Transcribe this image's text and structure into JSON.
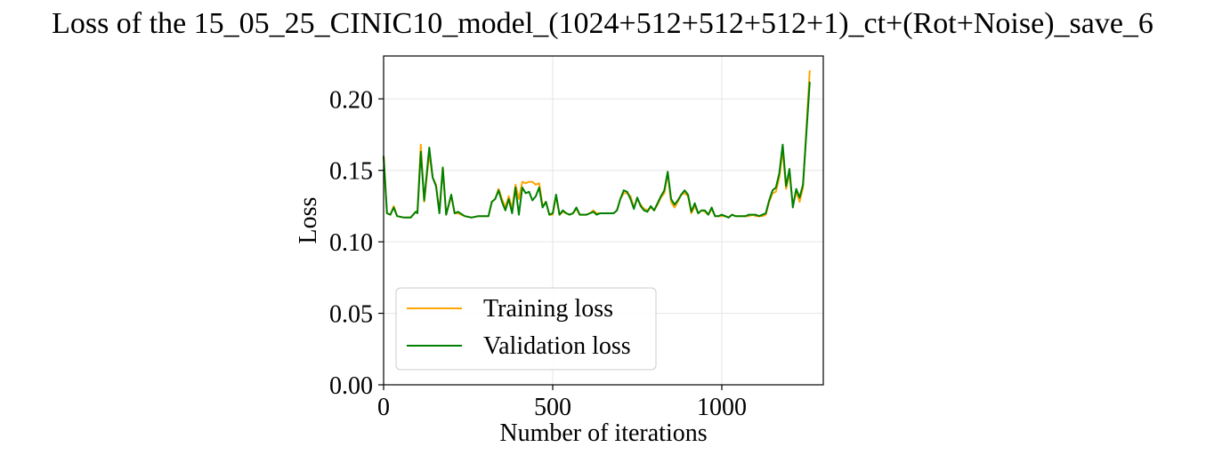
{
  "chart_data": {
    "type": "line",
    "title": "Loss of the 15_05_25_CINIC10_model_(1024+512+512+512+1)_ct+(Rot+Noise)_save_6",
    "xlabel": "Number of iterations",
    "ylabel": "Loss",
    "xlim": [
      0,
      1300
    ],
    "ylim": [
      0,
      0.23
    ],
    "xticks": [
      0,
      500,
      1000
    ],
    "xtick_labels": [
      "0",
      "500",
      "1000"
    ],
    "yticks": [
      0,
      0.05,
      0.1,
      0.15,
      0.2
    ],
    "ytick_labels": [
      "0.00",
      "0.05",
      "0.10",
      "0.15",
      "0.20"
    ],
    "grid": true,
    "legend_position": "lower-left",
    "series": [
      {
        "name": "Training loss",
        "color": "#ffa500",
        "x": [
          0,
          10,
          20,
          30,
          40,
          60,
          80,
          95,
          100,
          110,
          120,
          135,
          145,
          155,
          165,
          175,
          185,
          200,
          210,
          220,
          240,
          260,
          280,
          300,
          310,
          320,
          330,
          340,
          350,
          360,
          370,
          380,
          390,
          400,
          410,
          420,
          430,
          440,
          450,
          460,
          470,
          480,
          490,
          500,
          510,
          520,
          530,
          540,
          550,
          560,
          570,
          580,
          590,
          600,
          610,
          620,
          630,
          640,
          650,
          660,
          670,
          680,
          690,
          700,
          710,
          720,
          730,
          740,
          750,
          760,
          770,
          780,
          790,
          800,
          810,
          820,
          830,
          840,
          850,
          860,
          870,
          880,
          890,
          900,
          910,
          920,
          930,
          940,
          950,
          960,
          970,
          980,
          990,
          1000,
          1010,
          1020,
          1030,
          1040,
          1050,
          1060,
          1070,
          1080,
          1090,
          1100,
          1110,
          1120,
          1130,
          1140,
          1150,
          1160,
          1170,
          1180,
          1190,
          1200,
          1210,
          1220,
          1230,
          1240,
          1260
        ],
        "values": [
          0.16,
          0.12,
          0.119,
          0.125,
          0.118,
          0.117,
          0.117,
          0.121,
          0.121,
          0.168,
          0.128,
          0.162,
          0.145,
          0.14,
          0.121,
          0.152,
          0.119,
          0.132,
          0.12,
          0.12,
          0.118,
          0.117,
          0.118,
          0.118,
          0.118,
          0.128,
          0.13,
          0.137,
          0.13,
          0.124,
          0.132,
          0.123,
          0.14,
          0.13,
          0.142,
          0.141,
          0.142,
          0.142,
          0.14,
          0.141,
          0.125,
          0.128,
          0.119,
          0.119,
          0.132,
          0.119,
          0.121,
          0.12,
          0.119,
          0.12,
          0.123,
          0.119,
          0.119,
          0.119,
          0.12,
          0.122,
          0.12,
          0.12,
          0.12,
          0.12,
          0.12,
          0.12,
          0.122,
          0.13,
          0.134,
          0.134,
          0.132,
          0.124,
          0.13,
          0.126,
          0.123,
          0.122,
          0.124,
          0.122,
          0.126,
          0.131,
          0.134,
          0.148,
          0.128,
          0.124,
          0.128,
          0.133,
          0.134,
          0.132,
          0.12,
          0.125,
          0.12,
          0.122,
          0.121,
          0.119,
          0.123,
          0.118,
          0.118,
          0.118,
          0.118,
          0.117,
          0.119,
          0.118,
          0.118,
          0.118,
          0.118,
          0.118,
          0.119,
          0.118,
          0.118,
          0.118,
          0.119,
          0.128,
          0.134,
          0.135,
          0.145,
          0.164,
          0.137,
          0.148,
          0.126,
          0.135,
          0.128,
          0.138,
          0.22
        ]
      },
      {
        "name": "Validation loss",
        "color": "#008000",
        "x": [
          0,
          10,
          20,
          30,
          40,
          60,
          80,
          95,
          100,
          110,
          120,
          135,
          145,
          155,
          165,
          175,
          185,
          200,
          210,
          220,
          240,
          260,
          280,
          300,
          310,
          320,
          330,
          340,
          350,
          360,
          370,
          380,
          390,
          400,
          410,
          420,
          430,
          440,
          450,
          460,
          470,
          480,
          490,
          500,
          510,
          520,
          530,
          540,
          550,
          560,
          570,
          580,
          590,
          600,
          610,
          620,
          630,
          640,
          650,
          660,
          670,
          680,
          690,
          700,
          710,
          720,
          730,
          740,
          750,
          760,
          770,
          780,
          790,
          800,
          810,
          820,
          830,
          840,
          850,
          860,
          870,
          880,
          890,
          900,
          910,
          920,
          930,
          940,
          950,
          960,
          970,
          980,
          990,
          1000,
          1010,
          1020,
          1030,
          1040,
          1050,
          1060,
          1070,
          1080,
          1090,
          1100,
          1110,
          1120,
          1130,
          1140,
          1150,
          1160,
          1170,
          1180,
          1190,
          1200,
          1210,
          1220,
          1230,
          1240,
          1260
        ],
        "values": [
          0.16,
          0.12,
          0.119,
          0.124,
          0.118,
          0.117,
          0.117,
          0.121,
          0.12,
          0.163,
          0.129,
          0.166,
          0.145,
          0.139,
          0.12,
          0.152,
          0.119,
          0.133,
          0.12,
          0.121,
          0.118,
          0.117,
          0.118,
          0.118,
          0.118,
          0.128,
          0.13,
          0.136,
          0.128,
          0.122,
          0.13,
          0.12,
          0.138,
          0.119,
          0.138,
          0.134,
          0.135,
          0.129,
          0.132,
          0.138,
          0.124,
          0.128,
          0.119,
          0.12,
          0.133,
          0.119,
          0.122,
          0.12,
          0.119,
          0.12,
          0.124,
          0.119,
          0.119,
          0.119,
          0.12,
          0.121,
          0.119,
          0.12,
          0.12,
          0.12,
          0.12,
          0.12,
          0.122,
          0.13,
          0.136,
          0.135,
          0.13,
          0.123,
          0.131,
          0.125,
          0.122,
          0.121,
          0.125,
          0.122,
          0.127,
          0.132,
          0.136,
          0.149,
          0.13,
          0.126,
          0.129,
          0.133,
          0.136,
          0.133,
          0.121,
          0.127,
          0.12,
          0.122,
          0.122,
          0.119,
          0.124,
          0.118,
          0.118,
          0.119,
          0.118,
          0.117,
          0.119,
          0.118,
          0.118,
          0.118,
          0.118,
          0.119,
          0.119,
          0.119,
          0.118,
          0.119,
          0.12,
          0.129,
          0.136,
          0.138,
          0.148,
          0.168,
          0.139,
          0.151,
          0.124,
          0.137,
          0.131,
          0.14,
          0.212
        ]
      }
    ]
  }
}
